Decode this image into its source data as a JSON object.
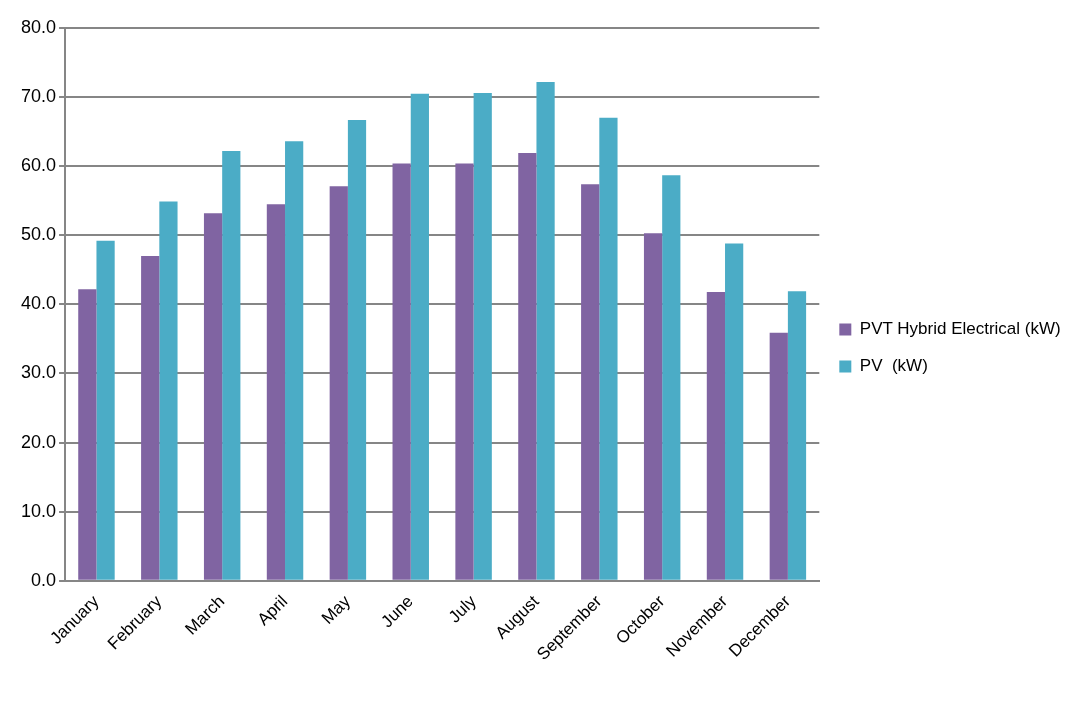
{
  "chart_data": {
    "type": "bar",
    "categories": [
      "January",
      "February",
      "March",
      "April",
      "May",
      "June",
      "July",
      "August",
      "September",
      "October",
      "November",
      "December"
    ],
    "series": [
      {
        "name": "PVT Hybrid Electrical (kW)",
        "color": "#8064a2",
        "values": [
          42.2,
          47.0,
          53.2,
          54.5,
          57.1,
          60.4,
          60.4,
          61.9,
          57.4,
          50.3,
          41.8,
          35.9
        ]
      },
      {
        "name": "PV  (kW)",
        "color": "#4bacc6",
        "values": [
          49.2,
          54.9,
          62.2,
          63.6,
          66.7,
          70.5,
          70.6,
          72.2,
          67.0,
          58.7,
          48.8,
          41.9
        ]
      }
    ],
    "ylim": [
      0,
      80
    ],
    "yticks": [
      {
        "value": 0,
        "label": "0.0"
      },
      {
        "value": 10,
        "label": "10.0"
      },
      {
        "value": 20,
        "label": "20.0"
      },
      {
        "value": 30,
        "label": "30.0"
      },
      {
        "value": 40,
        "label": "40.0"
      },
      {
        "value": 50,
        "label": "50.0"
      },
      {
        "value": 60,
        "label": "60.0"
      },
      {
        "value": 70,
        "label": "70.0"
      },
      {
        "value": 80,
        "label": "80.0"
      }
    ],
    "grid": "y",
    "legend": "right"
  }
}
